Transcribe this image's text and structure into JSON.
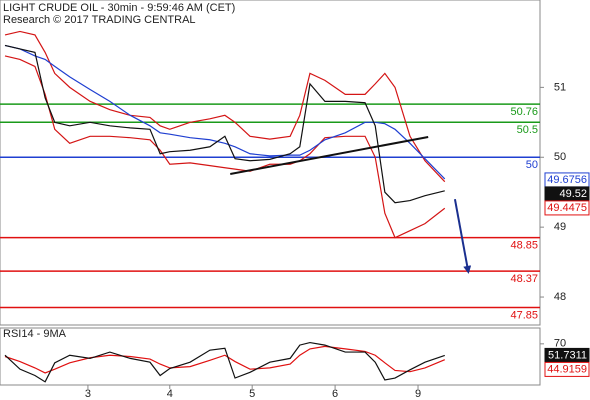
{
  "chart_data": [
    {
      "type": "line",
      "title": "LIGHT CRUDE OIL - 30min - 9:59:46 AM (CET)",
      "subtitle": "Research © 2017 TRADING CENTRAL",
      "x": [
        0,
        2.8,
        5.6,
        7.5,
        9.3,
        12.1,
        15.9,
        19.6,
        23.4,
        27.1,
        29,
        30.8,
        34.6,
        38.3,
        41.1,
        43,
        45.8,
        49.5,
        53.3,
        55.1,
        57,
        59.8,
        63.6,
        67.3,
        69.2,
        71,
        72.9,
        75.7,
        78.5,
        82.2
      ],
      "xlim": [
        0,
        100
      ],
      "ylim": [
        47.6,
        52.25
      ],
      "yticks": [
        48,
        49,
        50,
        51
      ],
      "series": [
        {
          "color": "#d41515",
          "values": [
            51.75,
            51.8,
            51.75,
            51.5,
            51.2,
            51.0,
            50.8,
            50.68,
            50.6,
            50.57,
            50.45,
            50.4,
            50.5,
            50.55,
            50.6,
            50.5,
            50.3,
            50.26,
            50.3,
            50.6,
            51.2,
            51.1,
            50.9,
            50.9,
            51.05,
            51.2,
            51.0,
            50.3,
            49.95,
            49.65
          ]
        },
        {
          "color": "#d41515",
          "values": [
            51.45,
            51.4,
            51.3,
            50.9,
            50.4,
            50.2,
            50.3,
            50.3,
            50.28,
            50.25,
            50.1,
            49.9,
            49.92,
            49.88,
            49.85,
            49.83,
            49.8,
            49.9,
            49.9,
            49.95,
            50.05,
            50.28,
            50.3,
            50.3,
            50.0,
            49.2,
            48.85,
            48.95,
            49.05,
            49.27
          ]
        },
        {
          "color": "#1f3fd1",
          "values": [
            51.6,
            51.55,
            51.45,
            51.4,
            51.3,
            51.15,
            50.97,
            50.8,
            50.6,
            50.45,
            50.35,
            50.33,
            50.28,
            50.25,
            50.2,
            50.15,
            50.05,
            50.02,
            50.03,
            50.03,
            50.1,
            50.25,
            50.35,
            50.5,
            50.5,
            50.48,
            50.4,
            50.2,
            49.98,
            49.69
          ]
        },
        {
          "color": "#111111",
          "values": [
            51.6,
            51.55,
            51.5,
            50.85,
            50.5,
            50.45,
            50.5,
            50.45,
            50.42,
            50.4,
            50.05,
            50.08,
            50.1,
            50.15,
            50.3,
            49.98,
            49.95,
            49.97,
            50.05,
            50.15,
            51.05,
            50.8,
            50.8,
            50.78,
            50.45,
            49.5,
            49.35,
            49.38,
            49.45,
            49.52
          ]
        }
      ],
      "levels": [
        {
          "value": 50.76,
          "color": "#1a9a1a"
        },
        {
          "value": 50.5,
          "color": "#1a9a1a"
        },
        {
          "value": 50,
          "color": "#1f3fd1"
        },
        {
          "value": 48.85,
          "color": "#e01010"
        },
        {
          "value": 48.37,
          "color": "#e01010"
        },
        {
          "value": 47.85,
          "color": "#e01010"
        }
      ],
      "trendline": {
        "x": [
          42.1,
          79.1
        ],
        "values": [
          49.76,
          50.29
        ],
        "color": "#111111"
      },
      "arrow": {
        "x": [
          84.1,
          86.6
        ],
        "values": [
          49.4,
          48.36
        ],
        "color": "#1a2f8f"
      },
      "price_labels": [
        {
          "value": 49.6756,
          "color": "#1f3fd1",
          "filled": false
        },
        {
          "value": 49.52,
          "color": "#111111",
          "filled": true
        },
        {
          "value": 49.4475,
          "color": "#e01010",
          "filled": false
        }
      ]
    },
    {
      "type": "line",
      "title": "RSI14 - 9MA",
      "x": [
        0,
        2.8,
        5.6,
        7.5,
        9.3,
        12.1,
        15.9,
        19.6,
        23.4,
        27.1,
        29,
        30.8,
        34.6,
        38.3,
        41.1,
        43,
        45.8,
        49.5,
        53.3,
        55.1,
        57,
        59.8,
        63.6,
        67.3,
        69.2,
        71,
        72.9,
        75.7,
        78.5,
        82.2
      ],
      "xlim": [
        0,
        100
      ],
      "xticks": [
        {
          "value": 15.5,
          "label": "3"
        },
        {
          "value": 30.8,
          "label": "4"
        },
        {
          "value": 46.2,
          "label": "5"
        },
        {
          "value": 61.7,
          "label": "6"
        },
        {
          "value": 77.2,
          "label": "9"
        }
      ],
      "ylim": [
        5,
        95
      ],
      "yticks": [
        70
      ],
      "series": [
        {
          "color": "#e01010",
          "values": [
            50,
            42,
            32,
            24,
            30,
            40,
            48,
            52,
            50,
            46,
            38,
            32,
            34,
            44,
            52,
            42,
            30,
            32,
            38,
            52,
            62,
            66,
            62,
            58,
            52,
            40,
            28,
            26,
            32,
            44.9
          ]
        },
        {
          "color": "#111111",
          "values": [
            52,
            30,
            20,
            10,
            40,
            52,
            47,
            57,
            47,
            41,
            20,
            31,
            41,
            60,
            63,
            16,
            25,
            41,
            47,
            68,
            72,
            68,
            57,
            57,
            41,
            13,
            16,
            29,
            41,
            51.7
          ]
        }
      ],
      "price_labels": [
        {
          "value": 51.7311,
          "color": "#111111",
          "filled": true
        },
        {
          "value": 44.9159,
          "color": "#e01010",
          "filled": false
        }
      ]
    }
  ]
}
